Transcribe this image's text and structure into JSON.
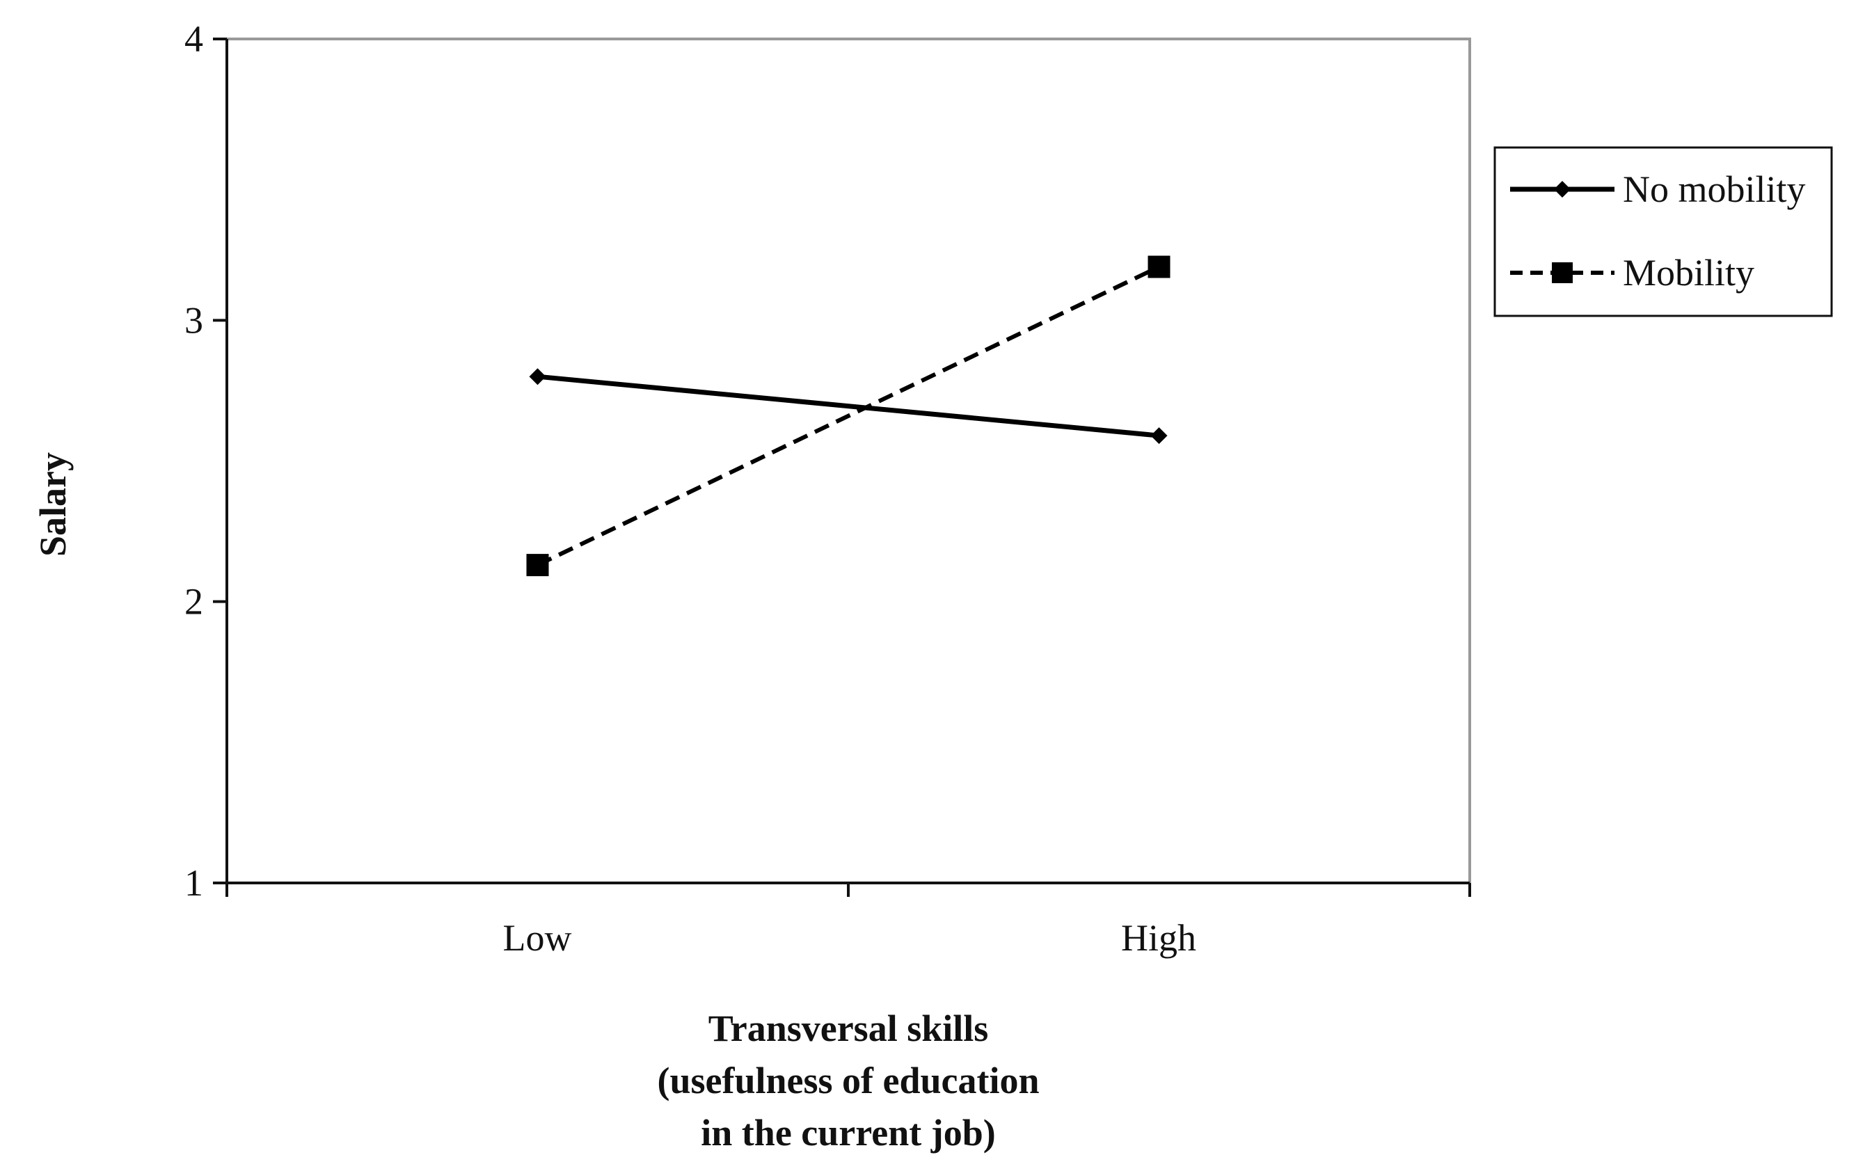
{
  "chart_data": {
    "type": "line",
    "categories": [
      "Low",
      "High"
    ],
    "series": [
      {
        "name": "No mobility",
        "values": [
          2.8,
          2.59
        ],
        "line_style": "solid",
        "marker": "diamond",
        "color": "#000000"
      },
      {
        "name": "Mobility",
        "values": [
          2.13,
          3.19
        ],
        "line_style": "dashed",
        "marker": "square",
        "color": "#000000"
      }
    ],
    "ylabel": "Salary",
    "xlabel_lines": [
      "Transversal skills",
      "(usefulness of education",
      "in the current job)"
    ],
    "ylim": [
      1,
      4
    ],
    "yticks": [
      1,
      2,
      3,
      4
    ],
    "grid": false,
    "legend": "right-top",
    "frame_color": "#999999"
  }
}
